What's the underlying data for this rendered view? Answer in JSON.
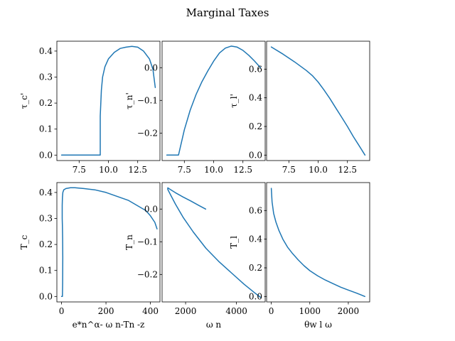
{
  "figure_title": "Marginal Taxes",
  "chart_data": [
    {
      "type": "line",
      "xlabel": "",
      "ylabel": "τ_c'",
      "xlim": [
        5.6,
        14.4
      ],
      "ylim": [
        -0.021,
        0.438
      ],
      "xticks": [
        {
          "v": 7.5,
          "label": "7.5"
        },
        {
          "v": 10.0,
          "label": "10.0"
        },
        {
          "v": 12.5,
          "label": "12.5"
        }
      ],
      "yticks": [
        {
          "v": 0.0,
          "label": "0.0"
        },
        {
          "v": 0.1,
          "label": "0.1"
        },
        {
          "v": 0.2,
          "label": "0.2"
        },
        {
          "v": 0.3,
          "label": "0.3"
        },
        {
          "v": 0.4,
          "label": "0.4"
        }
      ],
      "series": [
        {
          "x": [
            6.0,
            7.0,
            8.0,
            9.0,
            9.3,
            9.3,
            9.4,
            9.5,
            9.7,
            10.0,
            10.5,
            11.0,
            11.5,
            12.0,
            12.5,
            13.0,
            13.5,
            13.8,
            14.0
          ],
          "y": [
            0.0,
            0.0,
            0.0,
            0.0,
            0.0,
            0.15,
            0.25,
            0.3,
            0.34,
            0.37,
            0.395,
            0.41,
            0.415,
            0.418,
            0.415,
            0.4,
            0.37,
            0.33,
            0.26
          ]
        }
      ]
    },
    {
      "type": "line",
      "xlabel": "",
      "ylabel": "τ_n'",
      "xlim": [
        5.6,
        14.4
      ],
      "ylim": [
        -0.284,
        0.081
      ],
      "xticks": [
        {
          "v": 7.5,
          "label": "7.5"
        },
        {
          "v": 10.0,
          "label": "10.0"
        },
        {
          "v": 12.5,
          "label": "12.5"
        }
      ],
      "yticks": [
        {
          "v": 0.0,
          "label": "0.0"
        },
        {
          "v": -0.1,
          "label": "−0.1"
        },
        {
          "v": -0.2,
          "label": "−0.2"
        }
      ],
      "series": [
        {
          "x": [
            6.0,
            6.5,
            7.0,
            7.5,
            8.0,
            8.5,
            9.0,
            9.5,
            10.0,
            10.5,
            11.0,
            11.5,
            12.0,
            12.5,
            13.0,
            13.5,
            14.0
          ],
          "y": [
            -0.267,
            -0.267,
            -0.267,
            -0.19,
            -0.13,
            -0.082,
            -0.043,
            -0.01,
            0.02,
            0.045,
            0.06,
            0.066,
            0.063,
            0.053,
            0.038,
            0.02,
            0.0
          ]
        }
      ]
    },
    {
      "type": "line",
      "xlabel": "",
      "ylabel": "τ_l'",
      "xlim": [
        5.6,
        14.4
      ],
      "ylim": [
        -0.038,
        0.795
      ],
      "xticks": [
        {
          "v": 7.5,
          "label": "7.5"
        },
        {
          "v": 10.0,
          "label": "10.0"
        },
        {
          "v": 12.5,
          "label": "12.5"
        }
      ],
      "yticks": [
        {
          "v": 0.0,
          "label": "0.0"
        },
        {
          "v": 0.2,
          "label": "0.2"
        },
        {
          "v": 0.4,
          "label": "0.4"
        },
        {
          "v": 0.6,
          "label": "0.6"
        }
      ],
      "series": [
        {
          "x": [
            6.0,
            7.0,
            8.0,
            9.0,
            9.5,
            10.0,
            10.5,
            11.0,
            11.5,
            12.0,
            12.5,
            13.0,
            13.5,
            14.0
          ],
          "y": [
            0.755,
            0.705,
            0.65,
            0.59,
            0.555,
            0.51,
            0.455,
            0.395,
            0.33,
            0.265,
            0.2,
            0.13,
            0.065,
            0.0
          ]
        }
      ]
    },
    {
      "type": "line",
      "xlabel": "e*n^α- ω n-Tn -z",
      "ylabel": "T_c",
      "xlim": [
        -21,
        443
      ],
      "ylim": [
        -0.021,
        0.438
      ],
      "xticks": [
        {
          "v": 0,
          "label": "0"
        },
        {
          "v": 200,
          "label": "200"
        },
        {
          "v": 400,
          "label": "400"
        }
      ],
      "yticks": [
        {
          "v": 0.0,
          "label": "0.0"
        },
        {
          "v": 0.1,
          "label": "0.1"
        },
        {
          "v": 0.2,
          "label": "0.2"
        },
        {
          "v": 0.3,
          "label": "0.3"
        },
        {
          "v": 0.4,
          "label": "0.4"
        }
      ],
      "series": [
        {
          "x": [
            0,
            3,
            4,
            5,
            5.5,
            5,
            4,
            3,
            3,
            4,
            6,
            10,
            20,
            40,
            60,
            100,
            150,
            200,
            250,
            300,
            350,
            380,
            400,
            420,
            430
          ],
          "y": [
            0.0,
            0.0,
            0.0,
            0.05,
            0.15,
            0.22,
            0.27,
            0.3,
            0.35,
            0.38,
            0.4,
            0.41,
            0.415,
            0.418,
            0.418,
            0.415,
            0.41,
            0.4,
            0.385,
            0.37,
            0.345,
            0.33,
            0.31,
            0.285,
            0.26
          ]
        }
      ]
    },
    {
      "type": "line",
      "xlabel": "ω n",
      "ylabel": "T_n",
      "xlim": [
        1075,
        5130
      ],
      "ylim": [
        -0.284,
        0.081
      ],
      "xticks": [
        {
          "v": 2000,
          "label": "2000"
        },
        {
          "v": 4000,
          "label": "4000"
        }
      ],
      "yticks": [
        {
          "v": 0.0,
          "label": "0.0"
        },
        {
          "v": -0.1,
          "label": "−0.1"
        },
        {
          "v": -0.2,
          "label": "−0.2"
        }
      ],
      "series": [
        {
          "x": [
            2790,
            2500,
            2200,
            1900,
            1600,
            1400,
            1300,
            1300,
            1400,
            1600,
            1900,
            2300,
            2800,
            3300,
            3800,
            4300,
            4700,
            4950
          ],
          "y": [
            0.0,
            0.012,
            0.025,
            0.037,
            0.05,
            0.06,
            0.065,
            0.06,
            0.045,
            0.015,
            -0.025,
            -0.07,
            -0.12,
            -0.16,
            -0.195,
            -0.23,
            -0.255,
            -0.27
          ]
        }
      ]
    },
    {
      "type": "line",
      "xlabel": "θw l ω",
      "ylabel": "T_l",
      "xlim": [
        -122,
        2555
      ],
      "ylim": [
        -0.038,
        0.795
      ],
      "xticks": [
        {
          "v": 0,
          "label": "0"
        },
        {
          "v": 1000,
          "label": "1000"
        },
        {
          "v": 2000,
          "label": "2000"
        }
      ],
      "yticks": [
        {
          "v": 0.0,
          "label": "0.0"
        },
        {
          "v": 0.2,
          "label": "0.2"
        },
        {
          "v": 0.4,
          "label": "0.4"
        },
        {
          "v": 0.6,
          "label": "0.6"
        }
      ],
      "series": [
        {
          "x": [
            0,
            20,
            60,
            120,
            200,
            300,
            420,
            550,
            700,
            850,
            1000,
            1200,
            1400,
            1600,
            1800,
            2000,
            2200,
            2430
          ],
          "y": [
            0.755,
            0.66,
            0.58,
            0.52,
            0.46,
            0.4,
            0.345,
            0.3,
            0.255,
            0.215,
            0.18,
            0.145,
            0.115,
            0.09,
            0.065,
            0.045,
            0.025,
            0.0
          ]
        }
      ]
    }
  ]
}
